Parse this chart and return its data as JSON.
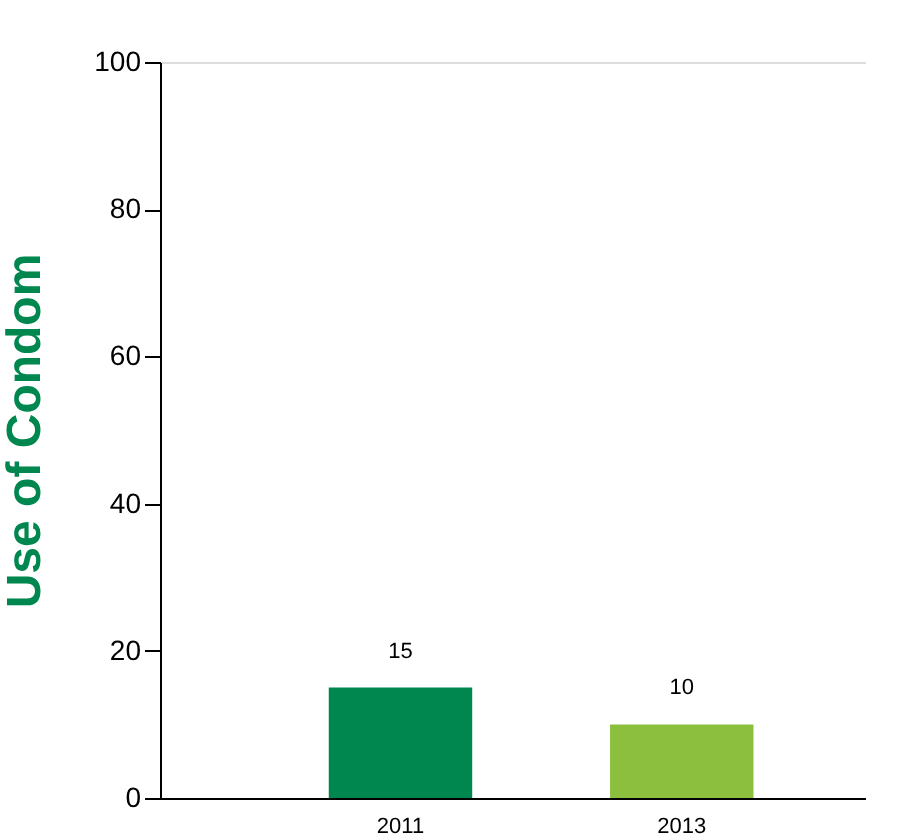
{
  "chart_data": {
    "type": "bar",
    "ylabel": "Use of Condom",
    "categories": [
      "2011",
      "2013"
    ],
    "values": [
      15,
      10
    ],
    "colors": [
      "#00874f",
      "#8dbf3f"
    ],
    "ylim": [
      0,
      100
    ],
    "yticks": [
      0,
      20,
      40,
      60,
      80,
      100
    ],
    "data_labels": true,
    "grid": false
  }
}
